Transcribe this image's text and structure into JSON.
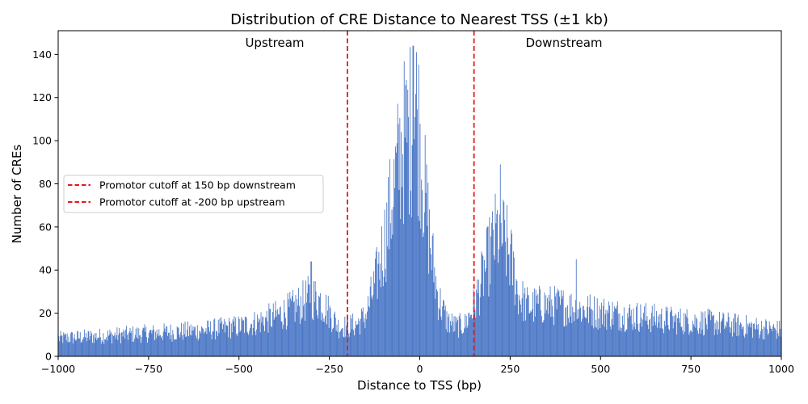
{
  "chart_data": {
    "type": "bar",
    "title": "Distribution of CRE Distance to Nearest TSS (±1 kb)",
    "xlabel": "Distance to TSS (bp)",
    "ylabel": "Number of CREs",
    "xlim": [
      -1000,
      1000
    ],
    "ylim": [
      0,
      151
    ],
    "xticks": [
      -1000,
      -750,
      -500,
      -250,
      0,
      250,
      500,
      750,
      1000
    ],
    "xtick_labels": [
      "−1000",
      "−750",
      "−500",
      "−250",
      "0",
      "250",
      "500",
      "750",
      "1000"
    ],
    "yticks": [
      0,
      20,
      40,
      60,
      80,
      100,
      120,
      140
    ],
    "ytick_labels": [
      "0",
      "20",
      "40",
      "60",
      "80",
      "100",
      "120",
      "140"
    ],
    "bin_width": 2,
    "bar_color": "#4472c4",
    "envelope": {
      "x": [
        -1000,
        -900,
        -800,
        -700,
        -600,
        -500,
        -450,
        -400,
        -350,
        -300,
        -275,
        -250,
        -225,
        -200,
        -175,
        -150,
        -125,
        -100,
        -75,
        -50,
        -25,
        -10,
        0,
        15,
        30,
        50,
        75,
        100,
        125,
        150,
        175,
        200,
        215,
        230,
        250,
        275,
        300,
        350,
        400,
        500,
        600,
        700,
        800,
        900,
        1000
      ],
      "y": [
        9,
        10,
        11,
        12,
        13,
        15,
        17,
        20,
        24,
        30,
        28,
        22,
        15,
        15,
        16,
        20,
        35,
        55,
        80,
        105,
        115,
        125,
        110,
        80,
        55,
        30,
        18,
        15,
        16,
        25,
        40,
        55,
        62,
        60,
        50,
        30,
        25,
        26,
        25,
        22,
        20,
        18,
        17,
        15,
        13
      ]
    },
    "peaks": [
      {
        "x": -300,
        "y": 44
      },
      {
        "x": -18,
        "y": 144
      },
      {
        "x": 223,
        "y": 89
      },
      {
        "x": 433,
        "y": 45
      }
    ],
    "reference_lines": [
      {
        "x": -200,
        "color": "#e31a1c",
        "style": "dashed",
        "label": "Promotor cutoff at -200 bp upstream"
      },
      {
        "x": 150,
        "color": "#e31a1c",
        "style": "dashed",
        "label": "Promotor cutoff at 150 bp downstream"
      }
    ],
    "legend": {
      "placement": "center-left",
      "entries": [
        "Promotor cutoff at 150 bp downstream",
        "Promotor cutoff at -200 bp upstream"
      ]
    },
    "annotations": {
      "upstream": "Upstream",
      "downstream": "Downstream"
    },
    "grid": false
  }
}
